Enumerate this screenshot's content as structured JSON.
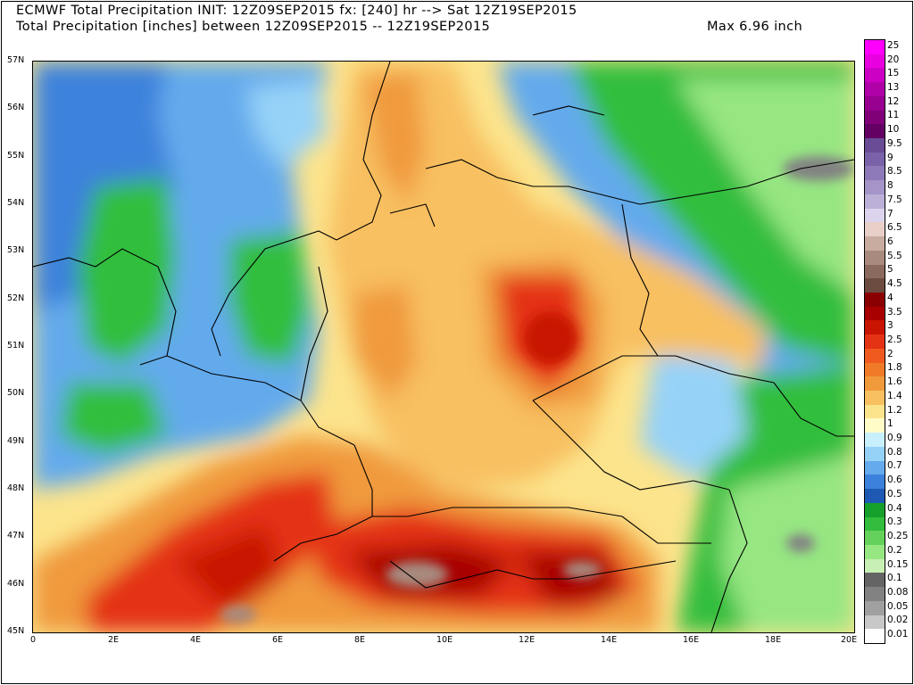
{
  "header": {
    "line1": "ECMWF Total Precipitation INIT: 12Z09SEP2015 fx: [240] hr --> Sat 12Z19SEP2015",
    "line2": "Total Precipitation [inches] between 12Z09SEP2015 -- 12Z19SEP2015",
    "max_label": "Max 6.96 inch"
  },
  "axes": {
    "lat_labels": [
      "57N",
      "56N",
      "55N",
      "54N",
      "53N",
      "52N",
      "51N",
      "50N",
      "49N",
      "48N",
      "47N",
      "46N",
      "45N"
    ],
    "lon_labels": [
      "0",
      "2E",
      "4E",
      "6E",
      "8E",
      "10E",
      "12E",
      "14E",
      "16E",
      "18E",
      "20E"
    ],
    "lat_range": [
      45,
      57
    ],
    "lon_range": [
      0,
      20
    ]
  },
  "colorbar": {
    "levels": [
      "25",
      "20",
      "15",
      "13",
      "12",
      "11",
      "10",
      "9.5",
      "9",
      "8.5",
      "8",
      "7.5",
      "7",
      "6.5",
      "6",
      "5.5",
      "5",
      "4.5",
      "4",
      "3.5",
      "3",
      "2.5",
      "2",
      "1.8",
      "1.6",
      "1.4",
      "1.2",
      "1",
      "0.9",
      "0.8",
      "0.7",
      "0.6",
      "0.5",
      "0.4",
      "0.3",
      "0.25",
      "0.2",
      "0.15",
      "0.1",
      "0.08",
      "0.05",
      "0.02",
      "0.01"
    ],
    "colors": [
      "#ff00ff",
      "#e800e0",
      "#cc00c4",
      "#b000a8",
      "#980090",
      "#800078",
      "#640064",
      "#6a4c96",
      "#7a62a8",
      "#8e7ab8",
      "#a494c8",
      "#bcb0d8",
      "#dcd4ec",
      "#e8d0c8",
      "#c8aca0",
      "#a88a7e",
      "#8a6a5e",
      "#6c4c40",
      "#8a0000",
      "#a80000",
      "#c81400",
      "#e43214",
      "#f05a1e",
      "#f07a28",
      "#f09a3c",
      "#f8c060",
      "#fce48c",
      "#fffcc8",
      "#c8f0fc",
      "#96d2f8",
      "#64aaec",
      "#3c82dc",
      "#1e5ab4",
      "#14a02a",
      "#32be3c",
      "#64d25a",
      "#96e682",
      "#c8f0b4",
      "#646464",
      "#828282",
      "#a0a0a0",
      "#c8c8c8",
      "#ffffff"
    ]
  }
}
